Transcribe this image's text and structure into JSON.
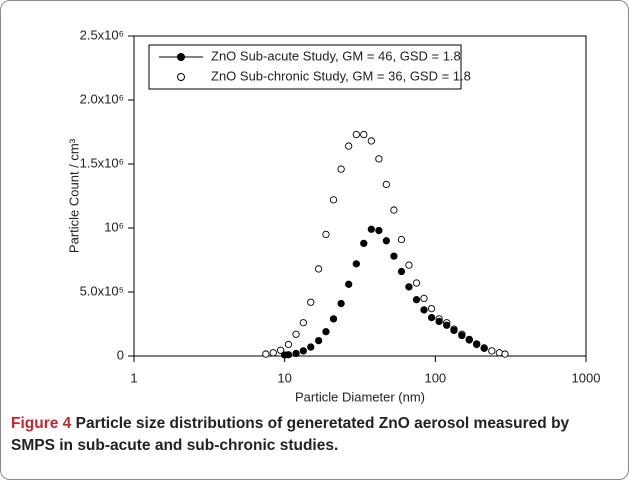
{
  "chart_data": {
    "type": "scatter",
    "xlabel": "Particle Diameter (nm)",
    "ylabel": "Particle Count / cm³",
    "xscale": "log",
    "xlim": [
      1,
      1000
    ],
    "xticks": [
      1,
      10,
      100,
      1000
    ],
    "ylim": [
      0,
      2500000
    ],
    "yticks": [
      0,
      {
        "value": 500000,
        "label": "5.0x10⁵"
      },
      {
        "value": 1000000,
        "label": "10⁶"
      },
      {
        "value": 1500000,
        "label": "1.5x10⁶"
      },
      {
        "value": 2000000,
        "label": "2.0x10⁶"
      },
      {
        "value": 2500000,
        "label": "2.5x10⁶"
      }
    ],
    "legend": "upper left",
    "series": [
      {
        "name": "ZnO Sub-acute Study, GM = 46, GSD = 1.8",
        "color": "#000000",
        "filled": true,
        "x": [
          10.0,
          10.6,
          11.9,
          13.3,
          14.9,
          16.8,
          18.8,
          21.1,
          23.7,
          26.6,
          29.9,
          33.5,
          37.6,
          42.2,
          47.3,
          53.1,
          59.6,
          66.8,
          75.0,
          84.1,
          94.4,
          106,
          119,
          133,
          150,
          168,
          188,
          211
        ],
        "values": [
          8000,
          10000,
          20000,
          40000,
          70000,
          120000,
          190000,
          290000,
          410000,
          560000,
          720000,
          880000,
          990000,
          980000,
          900000,
          780000,
          660000,
          540000,
          440000,
          360000,
          300000,
          270000,
          240000,
          200000,
          160000,
          125000,
          90000,
          60000
        ]
      },
      {
        "name": "ZnO Sub-chronic Study, GM = 36, GSD = 1.8",
        "color": "#000000",
        "filled": false,
        "x": [
          7.5,
          8.4,
          9.4,
          10.6,
          11.9,
          13.3,
          14.9,
          16.8,
          18.8,
          21.1,
          23.7,
          26.6,
          29.9,
          33.5,
          37.6,
          42.2,
          47.3,
          53.1,
          59.6,
          66.8,
          75.0,
          84.1,
          94.4,
          106,
          119,
          133,
          150,
          168,
          188,
          211,
          237,
          266,
          290
        ],
        "values": [
          15000,
          25000,
          45000,
          90000,
          170000,
          260000,
          420000,
          680000,
          950000,
          1220000,
          1460000,
          1640000,
          1730000,
          1730000,
          1680000,
          1540000,
          1340000,
          1140000,
          910000,
          710000,
          570000,
          450000,
          370000,
          290000,
          260000,
          210000,
          170000,
          130000,
          95000,
          63000,
          40000,
          25000,
          15000
        ]
      }
    ]
  },
  "caption": {
    "label": "Figure 4",
    "text": "Particle size distributions of generetated ZnO aerosol measured by SMPS in sub-acute and sub-chronic studies."
  }
}
